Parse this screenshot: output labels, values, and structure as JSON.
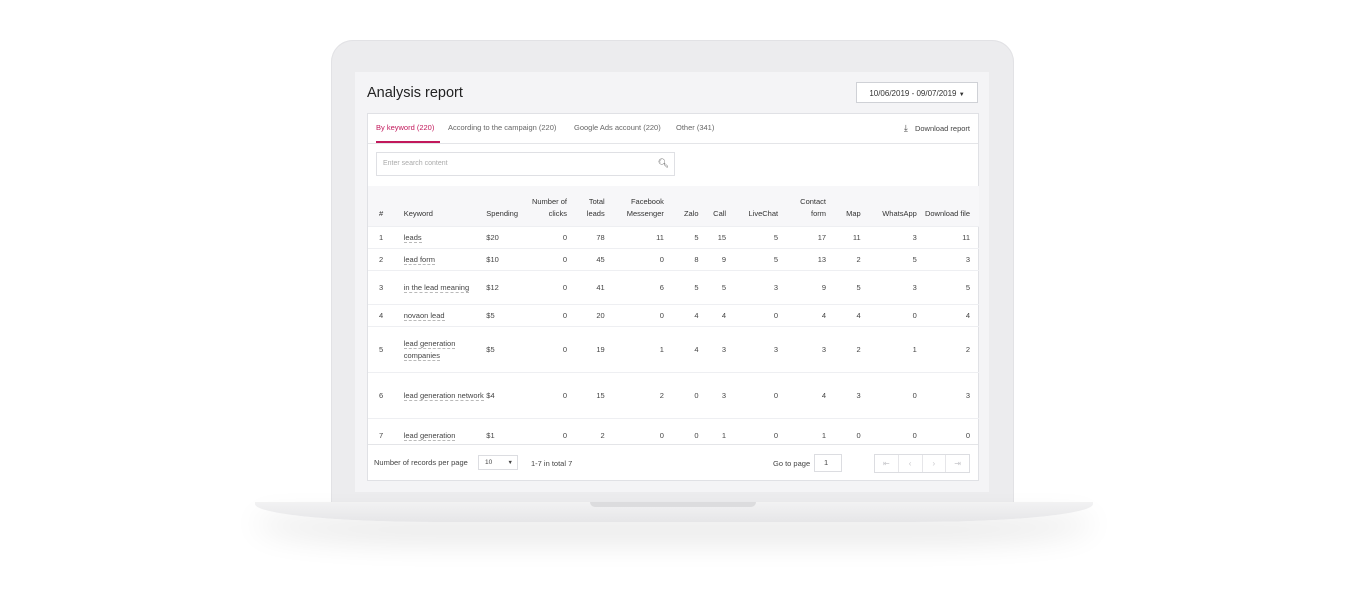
{
  "report": {
    "title": "Analysis report",
    "date_range": "10/06/2019 - 09/07/2019",
    "tabs": [
      {
        "label": "By keyword (220)",
        "active": true
      },
      {
        "label": "According to the campaign (220)",
        "active": false
      },
      {
        "label": "Google Ads account (220)",
        "active": false
      },
      {
        "label": "Other (341)",
        "active": false
      }
    ],
    "download_label": "Download report",
    "search_placeholder": "Enter search content"
  },
  "table": {
    "headers": [
      "#",
      "Keyword",
      "Spending",
      "Number of clicks",
      "Total leads",
      "Facebook Messenger",
      "Zalo",
      "Call",
      "LiveChat",
      "Contact form",
      "Map",
      "WhatsApp",
      "Download file"
    ],
    "rows": [
      {
        "n": "1",
        "keyword": "leads",
        "spending": "$20",
        "clicks": "0",
        "leads": "78",
        "fb": "11",
        "zalo": "5",
        "call": "15",
        "livechat": "5",
        "contact": "17",
        "map": "11",
        "whatsapp": "3",
        "download": "11"
      },
      {
        "n": "2",
        "keyword": "lead form",
        "spending": "$10",
        "clicks": "0",
        "leads": "45",
        "fb": "0",
        "zalo": "8",
        "call": "9",
        "livechat": "5",
        "contact": "13",
        "map": "2",
        "whatsapp": "5",
        "download": "3"
      },
      {
        "n": "3",
        "keyword": "in the lead meaning",
        "spending": "$12",
        "clicks": "0",
        "leads": "41",
        "fb": "6",
        "zalo": "5",
        "call": "5",
        "livechat": "3",
        "contact": "9",
        "map": "5",
        "whatsapp": "3",
        "download": "5"
      },
      {
        "n": "4",
        "keyword": "novaon lead",
        "spending": "$5",
        "clicks": "0",
        "leads": "20",
        "fb": "0",
        "zalo": "4",
        "call": "4",
        "livechat": "0",
        "contact": "4",
        "map": "4",
        "whatsapp": "0",
        "download": "4"
      },
      {
        "n": "5",
        "keyword": "lead generation companies",
        "spending": "$5",
        "clicks": "0",
        "leads": "19",
        "fb": "1",
        "zalo": "4",
        "call": "3",
        "livechat": "3",
        "contact": "3",
        "map": "2",
        "whatsapp": "1",
        "download": "2"
      },
      {
        "n": "6",
        "keyword": "lead generation network",
        "spending": "$4",
        "clicks": "0",
        "leads": "15",
        "fb": "2",
        "zalo": "0",
        "call": "3",
        "livechat": "0",
        "contact": "4",
        "map": "3",
        "whatsapp": "0",
        "download": "3"
      },
      {
        "n": "7",
        "keyword": "lead generation",
        "spending": "$1",
        "clicks": "0",
        "leads": "2",
        "fb": "0",
        "zalo": "0",
        "call": "1",
        "livechat": "0",
        "contact": "1",
        "map": "0",
        "whatsapp": "0",
        "download": "0"
      }
    ]
  },
  "footer": {
    "records_label": "Number of records per page",
    "records_value": "10",
    "range_text": "1-7 in total 7",
    "goto_label": "Go to page",
    "goto_value": "1"
  },
  "icons": {
    "download": "download-icon",
    "search": "search-icon",
    "pager": [
      "first-page-icon",
      "prev-page-icon",
      "next-page-icon",
      "last-page-icon"
    ]
  },
  "colors": {
    "accent": "#c2185b"
  }
}
